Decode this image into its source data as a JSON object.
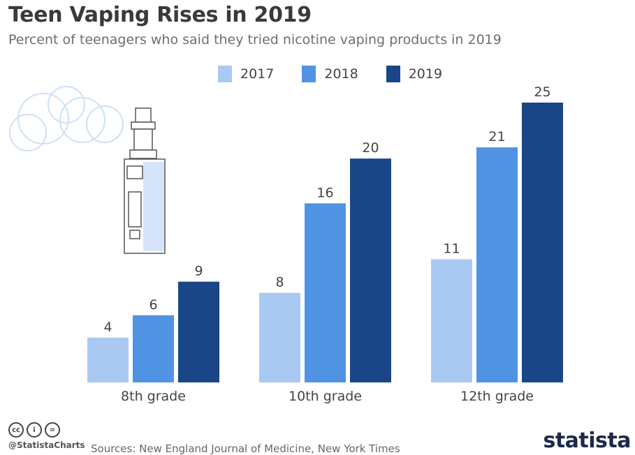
{
  "title": "Teen Vaping Rises in 2019",
  "subtitle": "Percent of teenagers who said they tried nicotine vaping products in 2019",
  "colors": {
    "2017": "#a9c9f2",
    "2018": "#5193e3",
    "2019": "#1a4586"
  },
  "chart_data": {
    "type": "bar",
    "title": "Teen Vaping Rises in 2019",
    "subtitle": "Percent of teenagers who said they tried nicotine vaping products in 2019",
    "categories": [
      "8th grade",
      "10th grade",
      "12th grade"
    ],
    "series": [
      {
        "name": "2017",
        "values": [
          4,
          8,
          11
        ]
      },
      {
        "name": "2018",
        "values": [
          6,
          16,
          21
        ]
      },
      {
        "name": "2019",
        "values": [
          9,
          20,
          25
        ]
      }
    ],
    "xlabel": "",
    "ylabel": "",
    "ylim": [
      0,
      25
    ],
    "grid": false,
    "legend": "top-center"
  },
  "footer": {
    "handle": "@StatistaCharts",
    "sources": "Sources: New England Journal of Medicine, New York Times",
    "logo": "statista",
    "license_icons": [
      "cc-icon",
      "attribution-icon",
      "no-derivatives-icon"
    ]
  }
}
